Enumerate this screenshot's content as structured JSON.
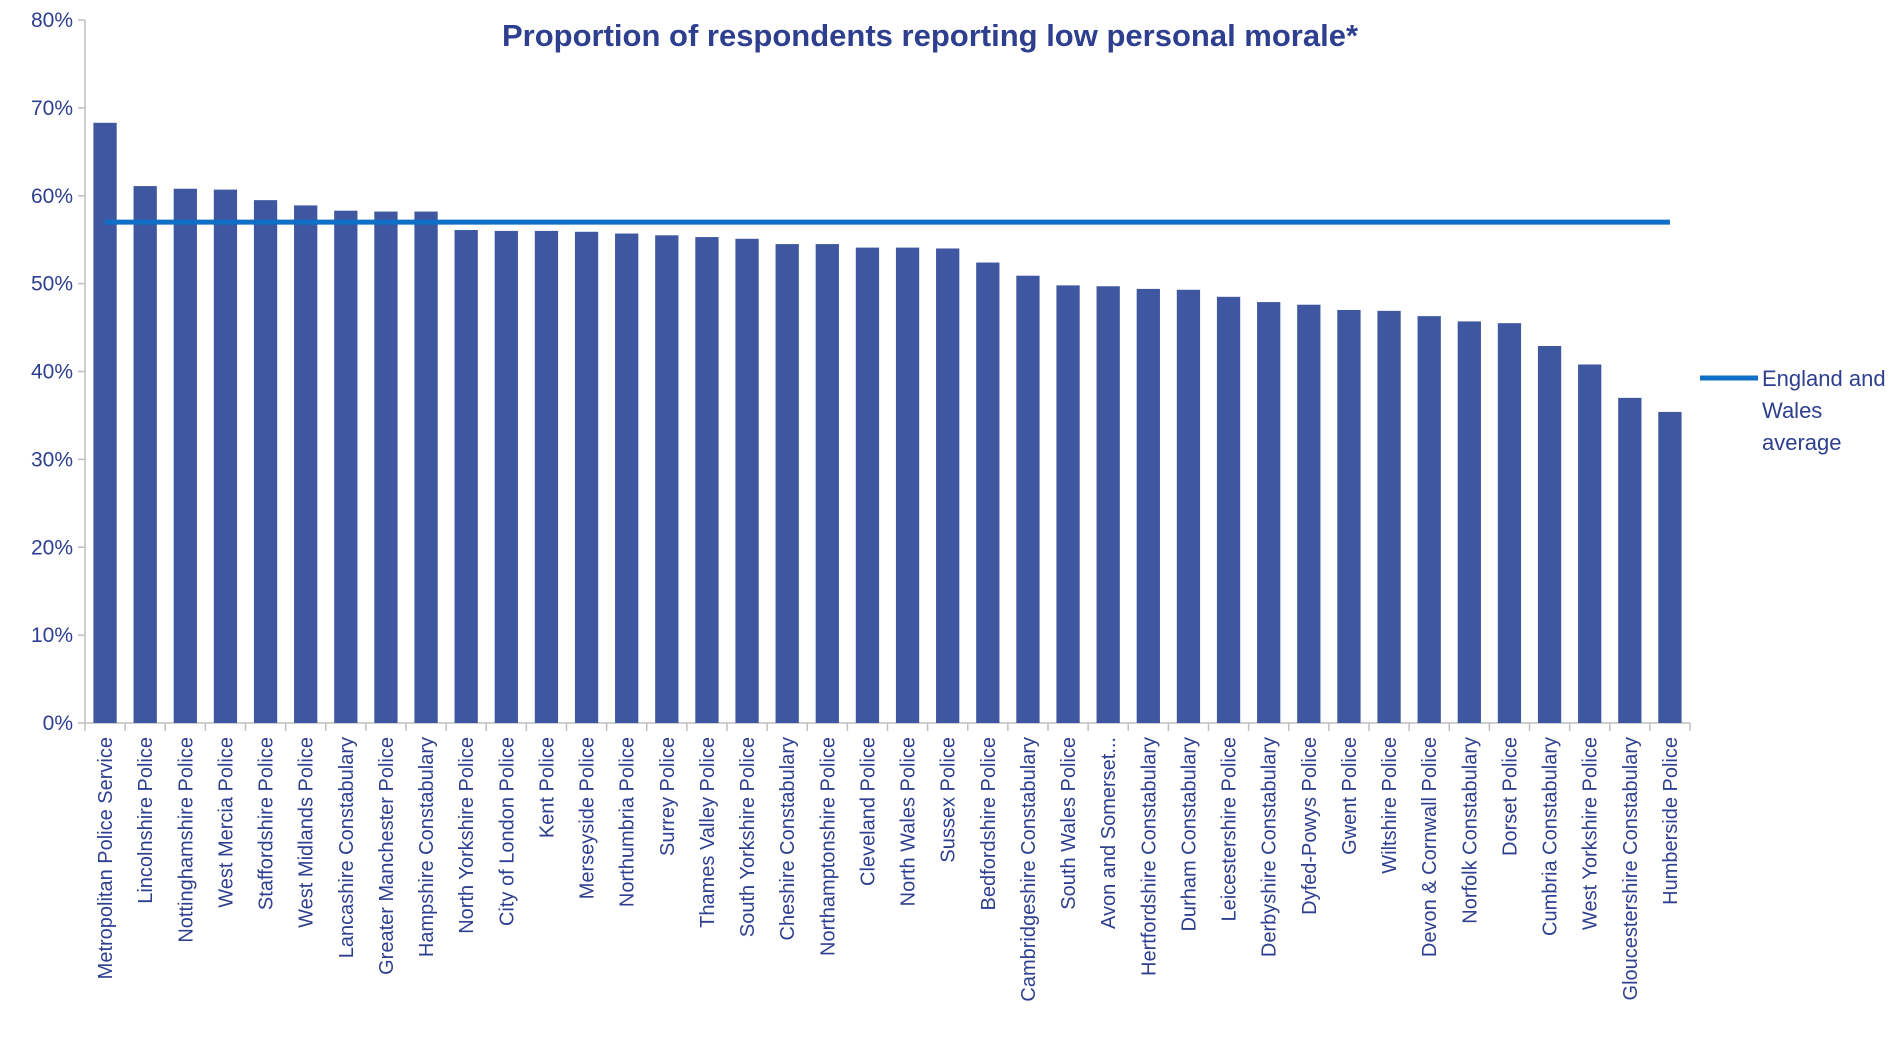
{
  "chart_data": {
    "type": "bar",
    "title": "Proportion of respondents reporting low personal morale*",
    "xlabel": "",
    "ylabel": "",
    "ylim": [
      0,
      80
    ],
    "yticks": [
      "0%",
      "10%",
      "20%",
      "30%",
      "40%",
      "50%",
      "60%",
      "70%",
      "80%"
    ],
    "categories": [
      "Metropolitan Police Service",
      "Lincolnshire Police",
      "Nottinghamshire Police",
      "West Mercia Police",
      "Staffordshire Police",
      "West Midlands Police",
      "Lancashire Constabulary",
      "Greater Manchester Police",
      "Hampshire Constabulary",
      "North Yorkshire Police",
      "City of London Police",
      "Kent Police",
      "Merseyside Police",
      "Northumbria Police",
      "Surrey Police",
      "Thames Valley Police",
      "South Yorkshire Police",
      "Cheshire Constabulary",
      "Northamptonshire Police",
      "Cleveland Police",
      "North Wales Police",
      "Sussex Police",
      "Bedfordshire Police",
      "Cambridgeshire Constabulary",
      "South Wales Police",
      "Avon and Somerset...",
      "Hertfordshire Constabulary",
      "Durham Constabulary",
      "Leicestershire Police",
      "Derbyshire Constabulary",
      "Dyfed-Powys Police",
      "Gwent Police",
      "Wiltshire Police",
      "Devon & Cornwall Police",
      "Norfolk Constabulary",
      "Dorset Police",
      "Cumbria Constabulary",
      "West Yorkshire Police",
      "Gloucestershire Constabulary",
      "Humberside Police"
    ],
    "values": [
      68.3,
      61.1,
      60.8,
      60.7,
      59.5,
      58.9,
      58.3,
      58.2,
      58.2,
      56.1,
      56.0,
      56.0,
      55.9,
      55.7,
      55.5,
      55.3,
      55.1,
      54.5,
      54.5,
      54.1,
      54.1,
      54.0,
      52.4,
      50.9,
      49.8,
      49.7,
      49.4,
      49.3,
      48.5,
      47.9,
      47.6,
      47.0,
      46.9,
      46.3,
      45.7,
      45.5,
      42.9,
      40.8,
      37.0,
      35.4
    ],
    "average": {
      "name": "England and Wales average",
      "value": 57.0
    },
    "legend_position": "right",
    "grid": false,
    "colors": {
      "bar": "#3F57A0",
      "average_line": "#0F6FC6",
      "title": "#2E3F8F",
      "axis": "#BFBFBF",
      "text": "#2E3F8F"
    }
  }
}
